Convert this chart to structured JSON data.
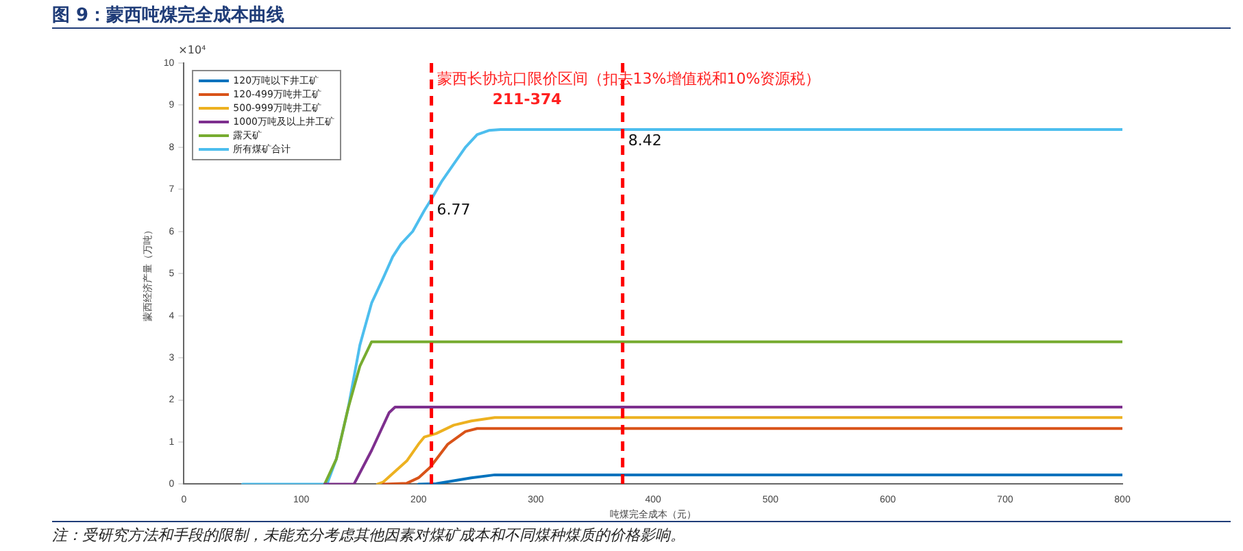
{
  "chart_data": {
    "type": "line",
    "title": "图 9：蒙西吨煤完全成本曲线",
    "xlabel": "吨煤完全成本（元）",
    "ylabel": "蒙西经济产量（万吨）",
    "xlim": [
      0,
      800
    ],
    "xticks": [
      0,
      100,
      200,
      300,
      400,
      500,
      600,
      700,
      800
    ],
    "ylim": [
      0,
      10
    ],
    "yticks": [
      0,
      1,
      2,
      3,
      4,
      5,
      6,
      7,
      8,
      9,
      10
    ],
    "grid": false,
    "legend": "top left",
    "marker": "none",
    "line_style": "solid",
    "series": [
      {
        "name": "120万吨以下井工矿",
        "color": "#0072bd",
        "x": [
          200,
          215,
          230,
          245,
          265,
          800
        ],
        "values": [
          0,
          0.01,
          0.08,
          0.15,
          0.22,
          0.22
        ]
      },
      {
        "name": "120-499万吨井工矿",
        "color": "#d95319",
        "x": [
          170,
          190,
          200,
          210,
          225,
          240,
          250,
          800
        ],
        "values": [
          0,
          0.02,
          0.15,
          0.4,
          0.95,
          1.25,
          1.32,
          1.32
        ]
      },
      {
        "name": "500-999万吨井工矿",
        "color": "#edb120",
        "x": [
          165,
          170,
          190,
          200,
          205,
          215,
          230,
          245,
          265,
          800
        ],
        "values": [
          0,
          0.05,
          0.55,
          0.95,
          1.12,
          1.2,
          1.4,
          1.5,
          1.58,
          1.58
        ]
      },
      {
        "name": "1000万吨及以上井工矿",
        "color": "#7e2f8e",
        "x": [
          120,
          145,
          160,
          175,
          180,
          800
        ],
        "values": [
          0,
          0,
          0.8,
          1.7,
          1.83,
          1.83
        ]
      },
      {
        "name": "露天矿",
        "color": "#77ac30",
        "x": [
          120,
          130,
          140,
          150,
          160,
          800
        ],
        "values": [
          0,
          0.6,
          1.8,
          2.8,
          3.38,
          3.38
        ]
      },
      {
        "name": "所有煤矿合计",
        "color": "#4dbeee",
        "x": [
          50,
          122,
          130,
          140,
          150,
          160,
          170,
          178,
          185,
          195,
          205,
          211,
          220,
          230,
          240,
          250,
          260,
          270,
          800
        ],
        "values": [
          0,
          0,
          0.6,
          1.8,
          3.3,
          4.3,
          4.9,
          5.4,
          5.7,
          6.0,
          6.5,
          6.77,
          7.2,
          7.6,
          8.0,
          8.3,
          8.4,
          8.42,
          8.42
        ]
      }
    ],
    "ref_lines": [
      {
        "axis": "x",
        "value": 211,
        "color": "#ff0000",
        "line_style": "dashed"
      },
      {
        "axis": "x",
        "value": 374,
        "color": "#ff0000",
        "line_style": "dashed"
      }
    ],
    "annotations": [
      "×10⁴",
      "蒙西长协坑口限价区间（扣去13%增值税和10%资源税）",
      "211-374",
      {
        "text": "6.77",
        "x": 211,
        "y": 6.77
      },
      {
        "text": "8.42",
        "x": 374,
        "y": 8.42
      },
      "注：受研究方法和手段的限制，未能充分考虑其他因素对煤矿成本和不同煤种煤质的价格影响。"
    ]
  }
}
